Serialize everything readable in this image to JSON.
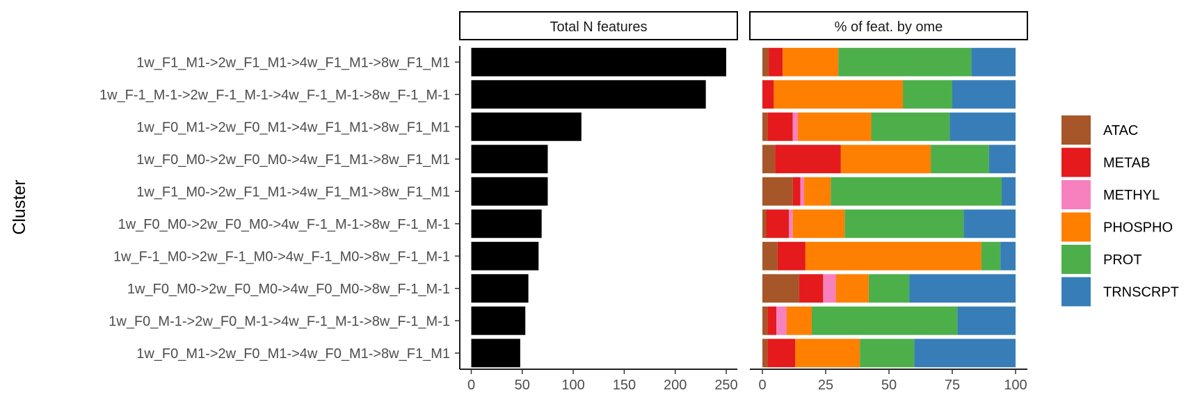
{
  "chart_data": [
    {
      "type": "bar",
      "orientation": "horizontal",
      "title": "Total N features",
      "ylabel": "Cluster",
      "xlabel": "",
      "xlim": [
        0,
        260
      ],
      "xticks": [
        0,
        50,
        100,
        150,
        200,
        250
      ],
      "categories": [
        "1w_F1_M1->2w_F1_M1->4w_F1_M1->8w_F1_M1",
        "1w_F-1_M-1->2w_F-1_M-1->4w_F-1_M-1->8w_F-1_M-1",
        "1w_F0_M1->2w_F0_M1->4w_F1_M1->8w_F1_M1",
        "1w_F0_M0->2w_F0_M0->4w_F1_M1->8w_F1_M1",
        "1w_F1_M0->2w_F1_M1->4w_F1_M1->8w_F1_M1",
        "1w_F0_M0->2w_F0_M0->4w_F-1_M-1->8w_F-1_M-1",
        "1w_F-1_M0->2w_F-1_M0->4w_F-1_M0->8w_F-1_M-1",
        "1w_F0_M0->2w_F0_M0->4w_F0_M0->8w_F-1_M-1",
        "1w_F0_M-1->2w_F0_M-1->4w_F-1_M-1->8w_F-1_M-1",
        "1w_F0_M1->2w_F0_M1->4w_F0_M1->8w_F1_M1"
      ],
      "values": [
        250,
        230,
        108,
        75,
        75,
        69,
        66,
        56,
        53,
        48
      ],
      "color": "#000000"
    },
    {
      "type": "bar",
      "orientation": "horizontal",
      "stacked": true,
      "title": "% of feat. by ome",
      "xlim": [
        0,
        100
      ],
      "xticks": [
        0,
        25,
        50,
        75,
        100
      ],
      "legend_position": "right",
      "series": [
        {
          "name": "ATAC",
          "color": "#A65628",
          "values": [
            2.5,
            0,
            2,
            5,
            12,
            1.5,
            6,
            14.5,
            2,
            2
          ]
        },
        {
          "name": "METAB",
          "color": "#E41A1C",
          "values": [
            5.5,
            4.5,
            10,
            26,
            3,
            9,
            11,
            9.5,
            3.5,
            11
          ]
        },
        {
          "name": "METHYL",
          "color": "#F781BF",
          "values": [
            0,
            0,
            2,
            0,
            1.5,
            1.5,
            0,
            5,
            4,
            0
          ]
        },
        {
          "name": "PHOSPHO",
          "color": "#FF7F00",
          "values": [
            22,
            51,
            29,
            35.5,
            10.5,
            20.5,
            69.5,
            13,
            10,
            25.5
          ]
        },
        {
          "name": "PROT",
          "color": "#4DAF4A",
          "values": [
            52.5,
            19.5,
            31,
            23,
            67.5,
            47,
            7.5,
            16,
            57.5,
            21.5
          ]
        },
        {
          "name": "TRNSCRPT",
          "color": "#377EB8",
          "values": [
            17.5,
            25,
            26,
            10.5,
            5.5,
            20.5,
            6,
            42,
            23,
            40
          ]
        }
      ]
    }
  ]
}
